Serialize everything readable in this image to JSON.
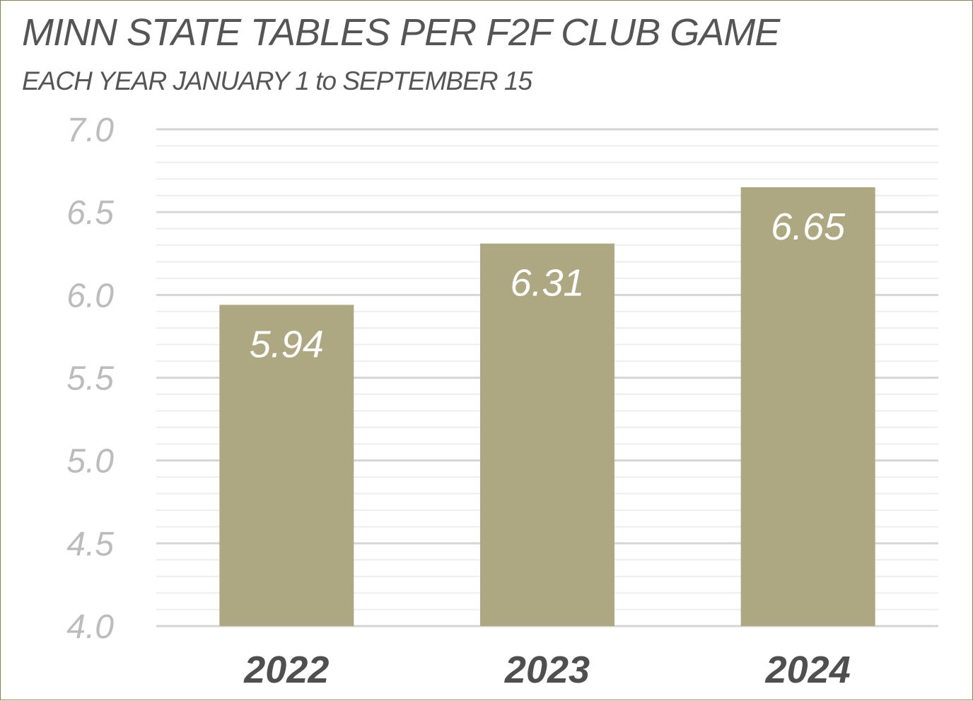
{
  "chart_data": {
    "type": "bar",
    "title": "MINN STATE TABLES PER F2F CLUB GAME",
    "subtitle": "EACH YEAR JANUARY 1 to SEPTEMBER 15",
    "categories": [
      "2022",
      "2023",
      "2024"
    ],
    "values": [
      5.94,
      6.31,
      6.65
    ],
    "data_labels": [
      "5.94",
      "6.31",
      "6.65"
    ],
    "ylim": [
      4.0,
      7.0
    ],
    "yticks": [
      "4.0",
      "4.5",
      "5.0",
      "5.5",
      "6.0",
      "6.5",
      "7.0"
    ],
    "minor_gridline_step": 0.1,
    "grid": true,
    "legend": "none",
    "xlabel": "",
    "ylabel": "",
    "colors": {
      "bar": "#aea882",
      "major_grid": "#d6d6d6",
      "minor_grid": "#eeeeee",
      "border": "#8a8256"
    }
  }
}
